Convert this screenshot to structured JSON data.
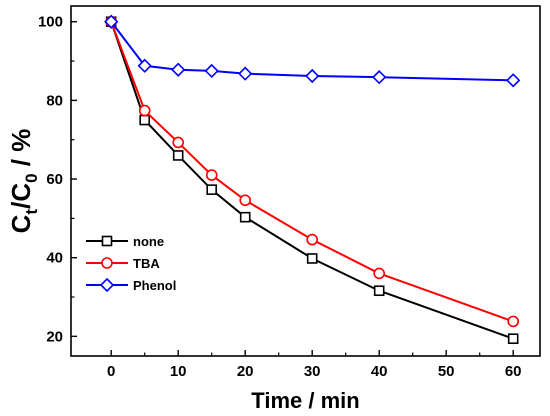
{
  "chart_data": {
    "type": "line",
    "xlabel": "Time / min",
    "ylabel": "Ct/C0 / %",
    "ylabel_parts": {
      "main1": "C",
      "sub1": "t",
      "main2": "/C",
      "sub2": "0",
      "rest": " / %"
    },
    "xlim": [
      -6,
      64
    ],
    "ylim": [
      15,
      104
    ],
    "x_ticks": [
      0,
      10,
      20,
      30,
      40,
      50,
      60
    ],
    "y_ticks": [
      20,
      40,
      60,
      80,
      100
    ],
    "grid": false,
    "legend_position": "left",
    "series": [
      {
        "name": "none",
        "color": "#000000",
        "marker": "square",
        "x": [
          0,
          5,
          10,
          15,
          20,
          30,
          40,
          60
        ],
        "y": [
          100,
          75,
          66,
          57.3,
          50.3,
          39.8,
          31.6,
          19.4
        ]
      },
      {
        "name": "TBA",
        "color": "#ff0000",
        "marker": "circle",
        "x": [
          0,
          5,
          10,
          15,
          20,
          30,
          40,
          60
        ],
        "y": [
          100,
          77.4,
          69.3,
          61,
          54.6,
          44.6,
          36,
          23.8
        ]
      },
      {
        "name": "Phenol",
        "color": "#0000ff",
        "marker": "diamond",
        "x": [
          0,
          5,
          10,
          15,
          20,
          30,
          40,
          60
        ],
        "y": [
          100,
          88.8,
          87.8,
          87.5,
          86.8,
          86.2,
          85.9,
          85.1
        ]
      }
    ]
  }
}
